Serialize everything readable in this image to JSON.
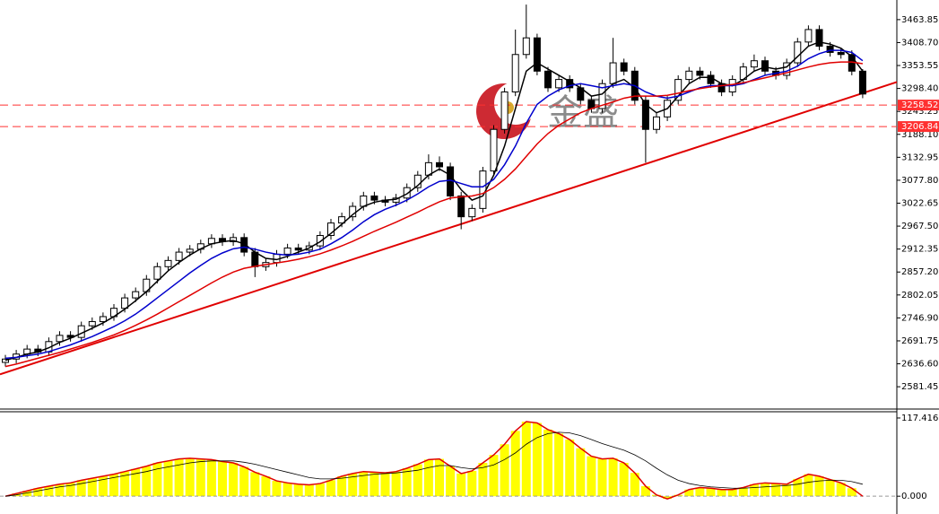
{
  "chart_data": [
    {
      "type": "candlestick",
      "watermark": "金盛",
      "open": [
        2640,
        2648,
        2660,
        2672,
        2665,
        2690,
        2705,
        2700,
        2728,
        2738,
        2750,
        2770,
        2795,
        2810,
        2840,
        2870,
        2885,
        2905,
        2912,
        2925,
        2938,
        2930,
        2940,
        2905,
        2870,
        2880,
        2900,
        2915,
        2910,
        2920,
        2945,
        2975,
        2990,
        3015,
        3040,
        3030,
        3025,
        3035,
        3060,
        3090,
        3120,
        3110,
        3040,
        2990,
        3010,
        3100,
        3200,
        3290,
        3380,
        3420,
        3340,
        3300,
        3320,
        3300,
        3270,
        3250,
        3310,
        3360,
        3340,
        3270,
        3200,
        3230,
        3270,
        3320,
        3340,
        3330,
        3310,
        3290,
        3320,
        3350,
        3365,
        3340,
        3330,
        3360,
        3410,
        3440,
        3400,
        3385,
        3380,
        3340
      ],
      "high": [
        2658,
        2670,
        2682,
        2682,
        2700,
        2715,
        2715,
        2738,
        2748,
        2760,
        2780,
        2805,
        2820,
        2850,
        2880,
        2895,
        2915,
        2922,
        2935,
        2948,
        2948,
        2950,
        2950,
        2915,
        2890,
        2910,
        2925,
        2925,
        2930,
        2955,
        2985,
        3000,
        3025,
        3050,
        3050,
        3040,
        3045,
        3070,
        3100,
        3140,
        3135,
        3120,
        3050,
        3020,
        3110,
        3210,
        3300,
        3440,
        3500,
        3430,
        3350,
        3330,
        3330,
        3310,
        3280,
        3320,
        3420,
        3370,
        3350,
        3280,
        3240,
        3280,
        3330,
        3350,
        3350,
        3340,
        3320,
        3330,
        3360,
        3380,
        3375,
        3350,
        3370,
        3420,
        3450,
        3450,
        3410,
        3395,
        3390,
        3345
      ],
      "low": [
        2630,
        2638,
        2650,
        2655,
        2655,
        2680,
        2690,
        2690,
        2718,
        2728,
        2740,
        2760,
        2785,
        2800,
        2830,
        2860,
        2875,
        2895,
        2902,
        2915,
        2920,
        2920,
        2895,
        2845,
        2860,
        2870,
        2890,
        2900,
        2900,
        2910,
        2935,
        2965,
        2980,
        3005,
        3020,
        3015,
        3015,
        3025,
        3050,
        3080,
        3100,
        3030,
        2960,
        2980,
        3000,
        3090,
        3190,
        3280,
        3370,
        3330,
        3290,
        3290,
        3290,
        3260,
        3240,
        3240,
        3300,
        3330,
        3260,
        3120,
        3190,
        3220,
        3260,
        3310,
        3320,
        3300,
        3280,
        3280,
        3310,
        3340,
        3330,
        3320,
        3320,
        3350,
        3400,
        3390,
        3375,
        3370,
        3330,
        3275
      ],
      "close": [
        2648,
        2660,
        2672,
        2665,
        2690,
        2705,
        2700,
        2728,
        2738,
        2750,
        2770,
        2795,
        2810,
        2840,
        2870,
        2885,
        2905,
        2912,
        2925,
        2938,
        2930,
        2940,
        2905,
        2870,
        2880,
        2900,
        2915,
        2910,
        2920,
        2945,
        2975,
        2990,
        3015,
        3040,
        3030,
        3025,
        3035,
        3060,
        3090,
        3120,
        3110,
        3040,
        2990,
        3010,
        3100,
        3200,
        3290,
        3380,
        3420,
        3340,
        3300,
        3320,
        3300,
        3270,
        3250,
        3310,
        3360,
        3340,
        3270,
        3200,
        3230,
        3270,
        3320,
        3340,
        3330,
        3310,
        3290,
        3320,
        3350,
        3365,
        3340,
        3330,
        3360,
        3410,
        3440,
        3400,
        3385,
        3380,
        3340,
        3285
      ],
      "lines": [
        {
          "color": "#000000",
          "values": [
            2645,
            2652,
            2660,
            2665,
            2675,
            2688,
            2698,
            2710,
            2722,
            2735,
            2750,
            2768,
            2788,
            2810,
            2835,
            2860,
            2880,
            2898,
            2913,
            2925,
            2930,
            2933,
            2925,
            2905,
            2890,
            2887,
            2895,
            2905,
            2915,
            2930,
            2950,
            2972,
            2995,
            3015,
            3025,
            3030,
            3032,
            3045,
            3065,
            3090,
            3105,
            3090,
            3055,
            3030,
            3040,
            3090,
            3160,
            3250,
            3340,
            3360,
            3345,
            3330,
            3315,
            3300,
            3280,
            3285,
            3310,
            3320,
            3300,
            3260,
            3240,
            3250,
            3280,
            3310,
            3325,
            3325,
            3310,
            3305,
            3320,
            3340,
            3350,
            3345,
            3350,
            3375,
            3400,
            3410,
            3405,
            3395,
            3375,
            3340
          ]
        },
        {
          "color": "#0000cc",
          "values": [
            2650,
            2652,
            2656,
            2660,
            2666,
            2674,
            2682,
            2692,
            2702,
            2714,
            2726,
            2740,
            2756,
            2775,
            2795,
            2815,
            2835,
            2855,
            2873,
            2890,
            2903,
            2913,
            2917,
            2912,
            2905,
            2900,
            2898,
            2900,
            2905,
            2912,
            2925,
            2940,
            2958,
            2978,
            2995,
            3008,
            3018,
            3030,
            3045,
            3062,
            3075,
            3078,
            3070,
            3062,
            3062,
            3080,
            3115,
            3160,
            3215,
            3260,
            3280,
            3295,
            3305,
            3310,
            3305,
            3300,
            3305,
            3310,
            3305,
            3290,
            3280,
            3275,
            3280,
            3290,
            3300,
            3305,
            3305,
            3305,
            3310,
            3320,
            3330,
            3335,
            3340,
            3352,
            3370,
            3382,
            3390,
            3390,
            3385,
            3365
          ]
        },
        {
          "color": "#e00000",
          "values": [
            2630,
            2636,
            2643,
            2650,
            2657,
            2664,
            2672,
            2680,
            2688,
            2697,
            2706,
            2717,
            2729,
            2742,
            2756,
            2771,
            2786,
            2801,
            2816,
            2831,
            2845,
            2857,
            2866,
            2871,
            2875,
            2879,
            2883,
            2888,
            2894,
            2901,
            2910,
            2920,
            2931,
            2943,
            2955,
            2966,
            2977,
            2989,
            3001,
            3014,
            3026,
            3035,
            3038,
            3040,
            3046,
            3060,
            3080,
            3105,
            3135,
            3165,
            3190,
            3210,
            3225,
            3240,
            3250,
            3258,
            3266,
            3275,
            3280,
            3280,
            3280,
            3282,
            3287,
            3293,
            3298,
            3302,
            3305,
            3308,
            3312,
            3318,
            3324,
            3330,
            3336,
            3343,
            3350,
            3356,
            3360,
            3362,
            3362,
            3358
          ]
        }
      ],
      "trendline": {
        "color": "#e00000",
        "values": [
          2615.6,
          3287
        ]
      },
      "levels": [
        3258.52,
        3206.84
      ],
      "level_color": "#ff3030",
      "ylim": [
        2530,
        3511
      ],
      "yticks": [
        3463.85,
        {
          "value": 3408.7,
          "label": "3408.70"
        },
        3353.55,
        {
          "value": 3298.4,
          "label": "3298.40"
        },
        3243.25,
        {
          "value": 3188.1,
          "label": "3188.10"
        },
        3132.95,
        {
          "value": 3077.8,
          "label": "3077.80"
        },
        3022.65,
        {
          "value": 2967.5,
          "label": "2967.50"
        },
        2912.35,
        {
          "value": 2857.2,
          "label": "2857.20"
        },
        2802.05,
        {
          "value": 2746.9,
          "label": "2746.90"
        },
        2691.75,
        {
          "value": 2636.6,
          "label": "2636.60"
        },
        2581.45
      ]
    },
    {
      "type": "histogram",
      "values": [
        0,
        4,
        8,
        12,
        15,
        18,
        20,
        24,
        27,
        30,
        33,
        37,
        41,
        45,
        50,
        53,
        56,
        57,
        56,
        55,
        52,
        50,
        44,
        36,
        30,
        23,
        20,
        18,
        17,
        19,
        24,
        30,
        34,
        37,
        36,
        35,
        37,
        42,
        48,
        55,
        56,
        45,
        34,
        38,
        50,
        62,
        78,
        98,
        112,
        110,
        100,
        94,
        85,
        72,
        60,
        56,
        57,
        50,
        35,
        15,
        2,
        -4,
        2,
        10,
        13,
        12,
        10,
        10,
        13,
        18,
        20,
        19,
        18,
        26,
        33,
        30,
        25,
        20,
        12,
        0
      ],
      "color": "#ffff00",
      "outline_color": "#e00000",
      "signal": {
        "color": "#000000",
        "values": [
          0,
          2,
          5,
          8,
          11,
          14,
          16,
          19,
          22,
          25,
          28,
          31,
          34,
          37,
          41,
          44,
          47,
          50,
          52,
          53,
          53,
          53,
          51,
          48,
          44,
          40,
          36,
          32,
          28,
          26,
          26,
          27,
          29,
          31,
          33,
          34,
          35,
          37,
          39,
          43,
          46,
          46,
          43,
          41,
          43,
          47,
          55,
          65,
          78,
          88,
          94,
          96,
          95,
          91,
          85,
          79,
          74,
          69,
          62,
          53,
          42,
          32,
          24,
          19,
          16,
          14,
          13,
          12,
          12,
          13,
          14,
          15,
          16,
          18,
          21,
          23,
          24,
          24,
          22,
          18
        ]
      },
      "ylim": [
        -26.7,
        126.8
      ],
      "yticks": [
        117.416,
        {
          "value": 0,
          "label": "0.000"
        }
      ]
    }
  ]
}
